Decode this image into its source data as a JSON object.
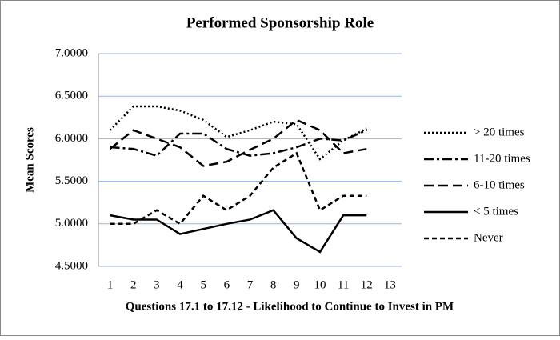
{
  "chart_data": {
    "type": "line",
    "title": "Performed Sponsorship Role",
    "x_label": "Questions 17.1 to 17.12 - Likelihood to Continue to Invest in PM",
    "y_label": "Mean Scores",
    "x": [
      1,
      2,
      3,
      4,
      5,
      6,
      7,
      8,
      9,
      10,
      11,
      12
    ],
    "xlim": [
      0.5,
      13.5
    ],
    "xticks": [
      1,
      2,
      3,
      4,
      5,
      6,
      7,
      8,
      9,
      10,
      11,
      12,
      13
    ],
    "ylim": [
      4.5,
      7.0
    ],
    "yticks": [
      {
        "value": 4.5,
        "label": "4.5000"
      },
      {
        "value": 5.0,
        "label": "5.0000"
      },
      {
        "value": 5.5,
        "label": "5.5000"
      },
      {
        "value": 6.0,
        "label": "6.0000"
      },
      {
        "value": 6.5,
        "label": "6.5000"
      },
      {
        "value": 7.0,
        "label": "7.0000"
      }
    ],
    "grid": true,
    "grid_color": "#95b3d7",
    "legend": "right",
    "series": [
      {
        "name": "> 20 times",
        "color": "#000000",
        "dash": "dotted",
        "values": [
          6.1,
          6.38,
          6.38,
          6.33,
          6.22,
          6.02,
          6.1,
          6.2,
          6.17,
          5.76,
          5.98,
          6.12
        ]
      },
      {
        "name": "11-20 times",
        "color": "#000000",
        "dash": "dashdot",
        "values": [
          5.9,
          5.88,
          5.8,
          6.06,
          6.06,
          5.88,
          5.8,
          5.83,
          5.9,
          6.0,
          5.98,
          6.1
        ]
      },
      {
        "name": "6-10 times",
        "color": "#000000",
        "dash": "longdash",
        "values": [
          5.88,
          6.1,
          6.0,
          5.9,
          5.68,
          5.73,
          5.87,
          6.0,
          6.22,
          6.1,
          5.83,
          5.88
        ]
      },
      {
        "name": "< 5 times",
        "color": "#000000",
        "dash": "solid",
        "values": [
          5.1,
          5.05,
          5.05,
          4.88,
          4.94,
          5.0,
          5.05,
          5.16,
          4.83,
          4.67,
          5.1,
          5.1
        ]
      },
      {
        "name": "Never",
        "color": "#000000",
        "dash": "dashed",
        "values": [
          5.0,
          5.0,
          5.16,
          5.0,
          5.33,
          5.16,
          5.33,
          5.66,
          5.83,
          5.16,
          5.33,
          5.33
        ]
      }
    ]
  }
}
